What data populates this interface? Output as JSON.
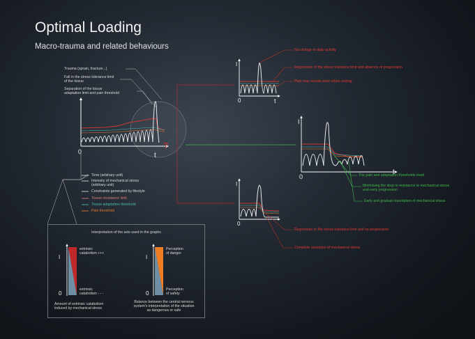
{
  "header": {
    "title": "Optimal Loading",
    "subtitle": "Macro-trauma and related behaviours"
  },
  "main_graph": {
    "annotations": [
      "Trauma (sprain, fracture...)",
      "Fall in the stress tolerance limit\nof the tissue",
      "Separation of the tissue\nadaptation limit and pain threshold"
    ],
    "question_mark": "?",
    "origin": "0",
    "x_axis": "t"
  },
  "legend": {
    "items": [
      {
        "label": "Time (arbitrary unit)",
        "color": "#d8d8d8"
      },
      {
        "label": "Intensity of mechanical stress\n(arbitrary unit)",
        "color": "#d8d8d8"
      },
      {
        "label": "Constraints generated by lifestyle",
        "color": "#d8d8d8"
      },
      {
        "label": "Tissue resistance limit",
        "color": "#d97a76"
      },
      {
        "label": "Tissue adaptation threshold",
        "color": "#4db8b0"
      },
      {
        "label": "Pain threshold",
        "color": "#e8782b"
      }
    ]
  },
  "top_graph": {
    "origin": "0",
    "x_axis": "t",
    "y_axis": "I",
    "notes": [
      "No change in daily activity",
      "Regression of the stress tolerance limit and absence of progression",
      "Pain may remain even when resting"
    ]
  },
  "middle_graph": {
    "origin": "0",
    "x_axis": "t",
    "y_axis": "I",
    "notes": [
      "The pain and adaptation thresholds meet",
      "Minimising the drop in resistance to mechanical stress\nand early progression",
      "Early and gradual resumption of mechanical stress"
    ]
  },
  "bottom_graph": {
    "origin": "0",
    "x_axis": "t",
    "y_axis": "I",
    "notes": [
      "Regression to the stress tolerance limit and no progression",
      "Complete cessation of mechanical stress"
    ]
  },
  "axis_box": {
    "title": "Interpretation of the axis used in the graphs",
    "left": {
      "axis_i": "I",
      "axis_0": "0",
      "top_label": "extrinsic\ncatabolism +++",
      "bottom_label": "extrinsic\ncatabolism - - -",
      "caption": "Amount of extrinsic catabolism\ninduced by mechanical stress",
      "colors": [
        "#c0282a",
        "#6f8ea3"
      ]
    },
    "right": {
      "axis_i": "I",
      "axis_0": "0",
      "top_label": "Perception\nof danger",
      "bottom_label": "Perception\nof safety",
      "caption": "Balance between the central nervous\nsystem's interpretation of the situation\nas dangerous or safe",
      "colors": [
        "#ef7d22",
        "#6f8ea3"
      ]
    }
  },
  "colors": {
    "resistance": "#c83a35",
    "adaptation": "#4db8b0",
    "pain": "#e8782b",
    "red_note": "#e23a32",
    "green_note": "#3fb94a"
  }
}
